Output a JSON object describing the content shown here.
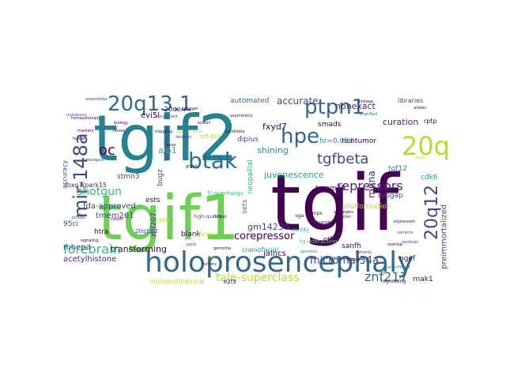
{
  "word_cloud": {
    "palette": [
      "#440154",
      "#482878",
      "#3e4989",
      "#31688e",
      "#26828e",
      "#1f9e89",
      "#35b779",
      "#6ece58",
      "#b5de2b",
      "#fde725"
    ],
    "words": [
      {
        "text": "tgif2",
        "color": "#26828e"
      },
      {
        "text": "tgif",
        "color": "#440154"
      },
      {
        "text": "tgif1",
        "color": "#6ece58"
      },
      {
        "text": "holoprosencephaly",
        "color": "#31688e"
      },
      {
        "text": "mir-148a",
        "color": "#3e4989"
      },
      {
        "text": "20q13.1",
        "color": "#31688e"
      },
      {
        "text": "ptpn1",
        "color": "#31688e"
      },
      {
        "text": "btak",
        "color": "#31688e"
      },
      {
        "text": "hpe",
        "color": "#31688e"
      },
      {
        "text": "20q",
        "color": "#b5de2b"
      },
      {
        "text": "20q12",
        "color": "#3e4989"
      },
      {
        "text": "tgfbeta",
        "color": "#3e4989"
      },
      {
        "text": "oc",
        "color": "#440154"
      },
      {
        "text": "repressors",
        "color": "#482878"
      },
      {
        "text": "forebrain",
        "color": "#35b779"
      },
      {
        "text": "tale-superclass",
        "color": "#b5de2b"
      },
      {
        "text": "znf217",
        "color": "#31688e"
      },
      {
        "text": "corepressor",
        "color": "#440154"
      },
      {
        "text": "microrna-34a",
        "color": "#3e4989"
      },
      {
        "text": "shotgun",
        "color": "#35b779"
      },
      {
        "text": "accurate",
        "color": "#3e4989"
      },
      {
        "text": "fxyd7",
        "color": "#440154"
      },
      {
        "text": "shining",
        "color": "#26828e"
      },
      {
        "text": "juvenescence",
        "color": "#1f9e89"
      },
      {
        "text": "curation",
        "color": "#482878"
      },
      {
        "text": "nonexact",
        "color": "#482878"
      },
      {
        "text": "transforming",
        "color": "#440154"
      },
      {
        "text": "acetylhistone",
        "color": "#482878"
      },
      {
        "text": "fda-approved",
        "color": "#3e4989"
      },
      {
        "text": "tmem261",
        "color": "#3e4989"
      },
      {
        "text": "aib1",
        "color": "#35b779"
      },
      {
        "text": "evi5l",
        "color": "#440154"
      },
      {
        "text": "automated",
        "color": "#31688e"
      },
      {
        "text": "20cen",
        "color": "#482878"
      },
      {
        "text": "dipius",
        "color": "#3e4989"
      },
      {
        "text": "smads",
        "color": "#440154"
      },
      {
        "text": "hr=0.053",
        "color": "#26828e"
      },
      {
        "text": "nontumor",
        "color": "#440154"
      },
      {
        "text": "tgf12",
        "color": "#26828e"
      },
      {
        "text": "rabgap",
        "color": "#3e4989"
      },
      {
        "text": "mirna",
        "color": "#482878"
      },
      {
        "text": "cdk6",
        "color": "#1f9e89"
      },
      {
        "text": "tomm20",
        "color": "#440154"
      },
      {
        "text": "jalncs",
        "color": "#440154"
      },
      {
        "text": "gm14230",
        "color": "#3e4989"
      },
      {
        "text": "mhepa",
        "color": "#3e4989"
      },
      {
        "text": "malformation",
        "color": "#b5de2b"
      },
      {
        "text": "preimmortalized",
        "color": "#3e4989"
      },
      {
        "text": "ngef",
        "color": "#440154"
      },
      {
        "text": "rnak1",
        "color": "#440154"
      },
      {
        "text": "multsinstitutional",
        "color": "#b5de2b"
      },
      {
        "text": "95ci",
        "color": "#3e4989"
      },
      {
        "text": "stmn3",
        "color": "#3e4989"
      },
      {
        "text": "htra",
        "color": "#440154"
      },
      {
        "text": "blank",
        "color": "#440154"
      },
      {
        "text": "ests",
        "color": "#440154"
      },
      {
        "text": "sets",
        "color": "#26828e"
      },
      {
        "text": "ctbp",
        "color": "#440154"
      },
      {
        "text": "sanfh",
        "color": "#440154"
      },
      {
        "text": "craniofacial",
        "color": "#1f9e89"
      },
      {
        "text": "znf207",
        "color": "#482878"
      },
      {
        "text": "bugz",
        "color": "#3e4989"
      },
      {
        "text": "rptp",
        "color": "#440154"
      },
      {
        "text": "neopallial",
        "color": "#35b779"
      },
      {
        "text": "qrt-pcr",
        "color": "#b5de2b"
      },
      {
        "text": "fbxo7/park15",
        "color": "#482878"
      },
      {
        "text": "accuracy",
        "color": "#3e4989"
      },
      {
        "text": "tgfss/nodal",
        "color": "#3e4989"
      },
      {
        "text": "libraries",
        "color": "#3e4989"
      },
      {
        "text": "20q11.2",
        "color": "#3e4989"
      },
      {
        "text": "chcar",
        "color": "#b5de2b"
      },
      {
        "text": "catfl",
        "color": "#b5de2b"
      },
      {
        "text": "e2f3",
        "color": "#440154"
      },
      {
        "text": "regressing",
        "color": "#440154"
      },
      {
        "text": "5'-overhangs",
        "color": "#35b779"
      },
      {
        "text": "tg-interacting",
        "color": "#6ece58"
      },
      {
        "text": "high-quality",
        "color": "#3e4989"
      },
      {
        "text": "bmps",
        "color": "#440154"
      },
      {
        "text": "vga",
        "color": "#440154"
      },
      {
        "text": "identity",
        "color": "#1f9e89"
      },
      {
        "text": "assemblies",
        "color": "#3e4989"
      },
      {
        "text": "candidate",
        "color": "#440154"
      },
      {
        "text": "strategies",
        "color": "#440154"
      },
      {
        "text": "mutations",
        "color": "#3e4989"
      },
      {
        "text": "ebolapsis",
        "color": "#3e4989"
      },
      {
        "text": "trigger",
        "color": "#440154"
      },
      {
        "text": "fusion",
        "color": "#b5de2b"
      },
      {
        "text": "overlap",
        "color": "#440154"
      },
      {
        "text": "clones",
        "color": "#440154"
      },
      {
        "text": "human",
        "color": "#440154"
      },
      {
        "text": "pairs",
        "color": "#3e4989"
      },
      {
        "text": "scanning",
        "color": "#440154"
      },
      {
        "text": "genomic",
        "color": "#26828e"
      },
      {
        "text": "signaling",
        "color": "#440154"
      },
      {
        "text": "alleles",
        "color": "#440154"
      },
      {
        "text": "exon",
        "color": "#b5de2b"
      },
      {
        "text": "probes",
        "color": "#3e4989"
      },
      {
        "text": "inhibitor",
        "color": "#440154"
      },
      {
        "text": "germline",
        "color": "#440154"
      },
      {
        "text": "residues",
        "color": "#3e4989"
      },
      {
        "text": "domain",
        "color": "#440154"
      },
      {
        "text": "loci",
        "color": "#b5de2b"
      },
      {
        "text": "tumors",
        "color": "#440154"
      },
      {
        "text": "variants",
        "color": "#3e4989"
      },
      {
        "text": "markers",
        "color": "#440154"
      },
      {
        "text": "amplified",
        "color": "#26828e"
      },
      {
        "text": "homeodomain",
        "color": "#440154"
      },
      {
        "text": "mapping",
        "color": "#440154"
      },
      {
        "text": "deletion",
        "color": "#3e4989"
      },
      {
        "text": "expression",
        "color": "#440154"
      },
      {
        "text": "cohort",
        "color": "#440154"
      },
      {
        "text": "linkage",
        "color": "#440154"
      },
      {
        "text": "asymmetry",
        "color": "#440154"
      },
      {
        "text": "assignment",
        "color": "#3e4989"
      },
      {
        "text": "cell",
        "color": "#b5de2b"
      },
      {
        "text": "screen",
        "color": "#440154"
      },
      {
        "text": "format",
        "color": "#440154"
      },
      {
        "text": "graph",
        "color": "#440154"
      },
      {
        "text": "enrichment",
        "color": "#26828e"
      },
      {
        "text": "biology",
        "color": "#440154"
      },
      {
        "text": "patients",
        "color": "#3e4989"
      },
      {
        "text": "gene",
        "color": "#440154"
      },
      {
        "text": "binding",
        "color": "#3e4989"
      }
    ]
  }
}
